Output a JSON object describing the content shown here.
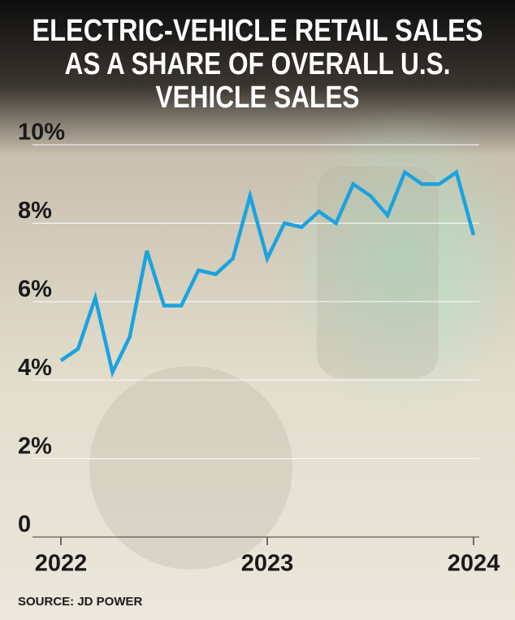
{
  "chart_data": {
    "type": "line",
    "title": [
      "ELECTRIC-VEHICLE RETAIL SALES",
      "AS A SHARE OF OVERALL U.S.",
      "VEHICLE SALES"
    ],
    "source": "SOURCE: JD POWER",
    "categories": [
      "2022",
      null,
      null,
      null,
      null,
      null,
      null,
      null,
      null,
      null,
      null,
      null,
      "2023",
      null,
      null,
      null,
      null,
      null,
      null,
      null,
      null,
      null,
      null,
      null,
      "2024"
    ],
    "series": [
      {
        "color": "#1aa3e0",
        "values": [
          4.5,
          4.8,
          6.1,
          4.2,
          5.1,
          7.3,
          5.9,
          5.9,
          6.8,
          6.7,
          7.1,
          8.7,
          7.1,
          8.0,
          7.9,
          8.3,
          8.0,
          9.0,
          8.7,
          8.2,
          9.3,
          9.0,
          9.0,
          9.3,
          7.7
        ]
      }
    ],
    "ylim": [
      0,
      10
    ],
    "yticks": [
      0,
      {
        "value": 2,
        "label": "2%"
      },
      {
        "value": 4,
        "label": "4%"
      },
      {
        "value": 6,
        "label": "6%"
      },
      {
        "value": 8,
        "label": "8%"
      },
      {
        "value": 10,
        "label": "10%"
      }
    ],
    "grid": true
  }
}
